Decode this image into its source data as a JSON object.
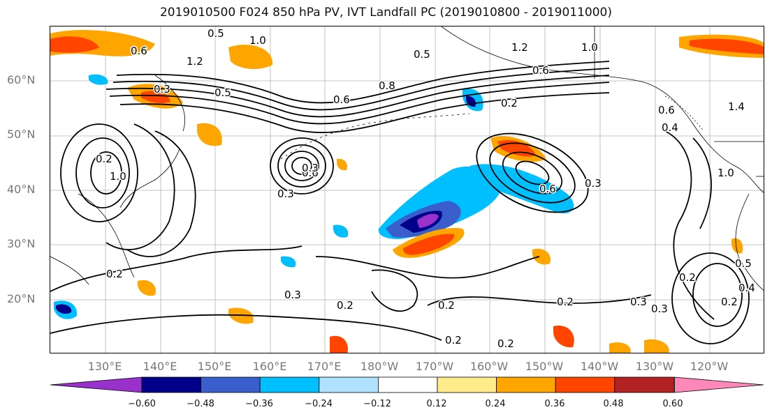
{
  "title": "2019010500 F024 850 hPa PV, IVT Landfall PC (2019010800 - 2019011000)",
  "lat_labels": [
    "60°N",
    "50°N",
    "40°N",
    "30°N",
    "20°N"
  ],
  "lon_labels": [
    "130°E",
    "140°E",
    "150°E",
    "160°E",
    "170°E",
    "180°W",
    "170°W",
    "160°W",
    "150°W",
    "140°W",
    "130°W",
    "120°W"
  ],
  "colorbar": {
    "ticks": [
      "−0.60",
      "−0.48",
      "−0.36",
      "−0.24",
      "−0.12",
      "0.12",
      "0.24",
      "0.36",
      "0.48",
      "0.60"
    ],
    "colors": [
      "#9932cc",
      "#00008b",
      "#3a5fcd",
      "#00bfff",
      "#b0e2ff",
      "#ffffff",
      "#ffeb8a",
      "#ffa500",
      "#ff4500",
      "#b22222",
      "#ff88bb"
    ]
  },
  "contour_labels": [
    "0.5",
    "1.0",
    "0.6",
    "1.2",
    "0.3",
    "0.5",
    "0.8",
    "0.6",
    "0.5",
    "0.2",
    "0.3",
    "0.6",
    "0.3",
    "1.2",
    "0.6",
    "1.0",
    "0.6",
    "0.4",
    "1.4",
    "0.3",
    "0.2",
    "0.3",
    "0.2",
    "0.2",
    "0.2",
    "0.2",
    "0.2",
    "0.3",
    "0.3",
    "0.2",
    "0.5",
    "0.4",
    "0.2",
    "0.2",
    "1.0",
    "1.0",
    "0.6"
  ],
  "colors": {
    "contour": "#000000",
    "grid": "#b0b0b0",
    "coast": "#000000"
  }
}
